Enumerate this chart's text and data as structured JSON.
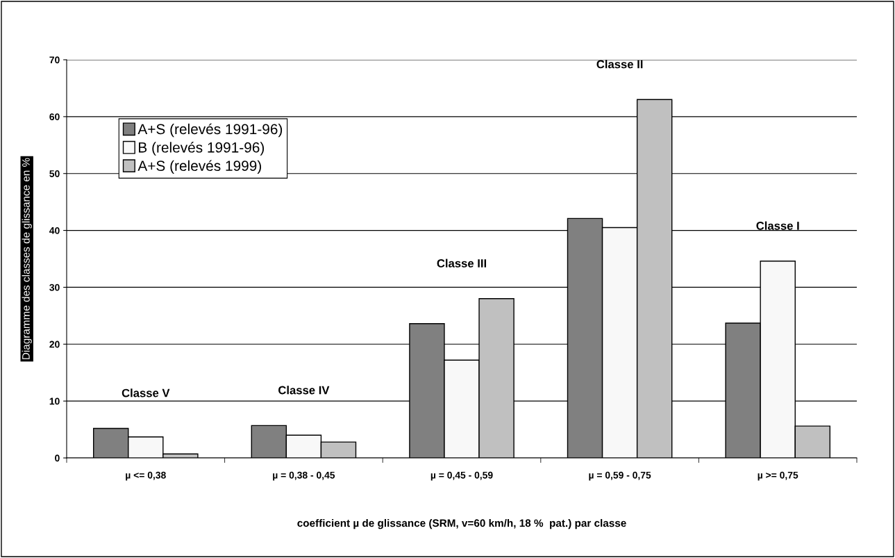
{
  "chart_data": {
    "type": "bar",
    "xlabel": "coefficient µ de glissance (SRM, v=60 km/h, 18 %  pat.) par classe",
    "ylabel": "Diagramme des classes de glissance en %",
    "categories": [
      "µ <= 0,38",
      "µ = 0,38 - 0,45",
      "µ = 0,45 - 0,59",
      "µ = 0,59 - 0,75",
      "µ >= 0,75"
    ],
    "series": [
      {
        "name": "A+S (relevés 1991-96)",
        "color": "#808080",
        "values": [
          5.2,
          5.7,
          23.6,
          42.1,
          23.7
        ]
      },
      {
        "name": "B (relevés 1991-96)",
        "color": "#f8f8f8",
        "values": [
          3.7,
          4.0,
          17.2,
          40.5,
          34.6
        ]
      },
      {
        "name": "A+S (relevés 1999)",
        "color": "#c0c0c0",
        "values": [
          0.7,
          2.8,
          28.0,
          63.0,
          5.6
        ]
      }
    ],
    "annotations": [
      "Classe V",
      "Classe IV",
      "Classe III",
      "Classe II",
      "Classe I"
    ],
    "ylim": [
      0,
      70
    ],
    "yticks": [
      0,
      10,
      20,
      30,
      40,
      50,
      60,
      70
    ],
    "grid": "y",
    "legend": "top left"
  }
}
